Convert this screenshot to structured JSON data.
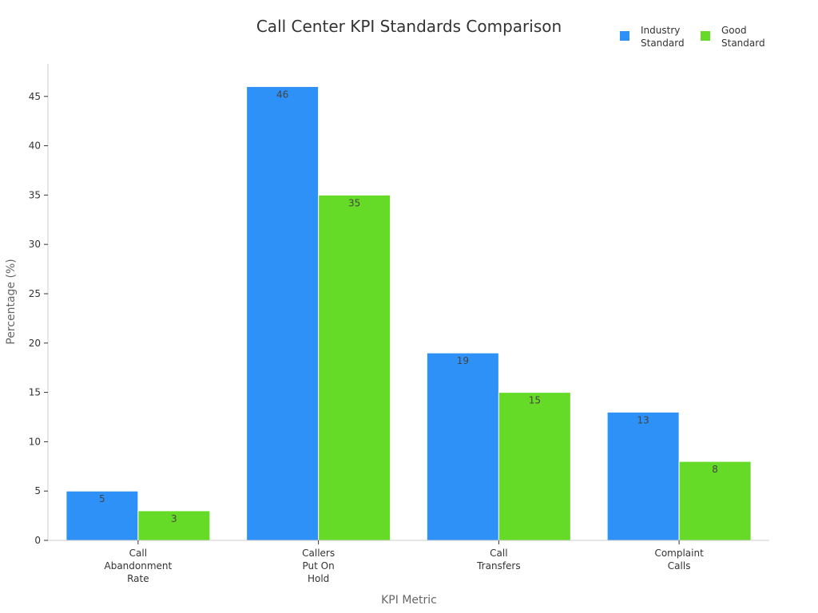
{
  "chart_data": {
    "type": "bar",
    "title": "Call Center KPI Standards Comparison",
    "xlabel": "KPI Metric",
    "ylabel": "Percentage (%)",
    "categories": [
      [
        "Call",
        "Abandonment",
        "Rate"
      ],
      [
        "Callers",
        "Put On",
        "Hold"
      ],
      [
        "Call",
        "Transfers"
      ],
      [
        "Complaint",
        "Calls"
      ]
    ],
    "series": [
      {
        "name": [
          "Industry",
          "Standard"
        ],
        "color": "#2E91F7",
        "values": [
          5,
          46,
          19,
          13
        ]
      },
      {
        "name": [
          "Good",
          "Standard"
        ],
        "color": "#66DB27",
        "values": [
          3,
          35,
          15,
          8
        ]
      }
    ],
    "ylim": [
      0,
      48.3
    ],
    "yticks": [
      0,
      5,
      10,
      15,
      20,
      25,
      30,
      35,
      40,
      45
    ],
    "grid": false,
    "legend_position": "top-right"
  }
}
